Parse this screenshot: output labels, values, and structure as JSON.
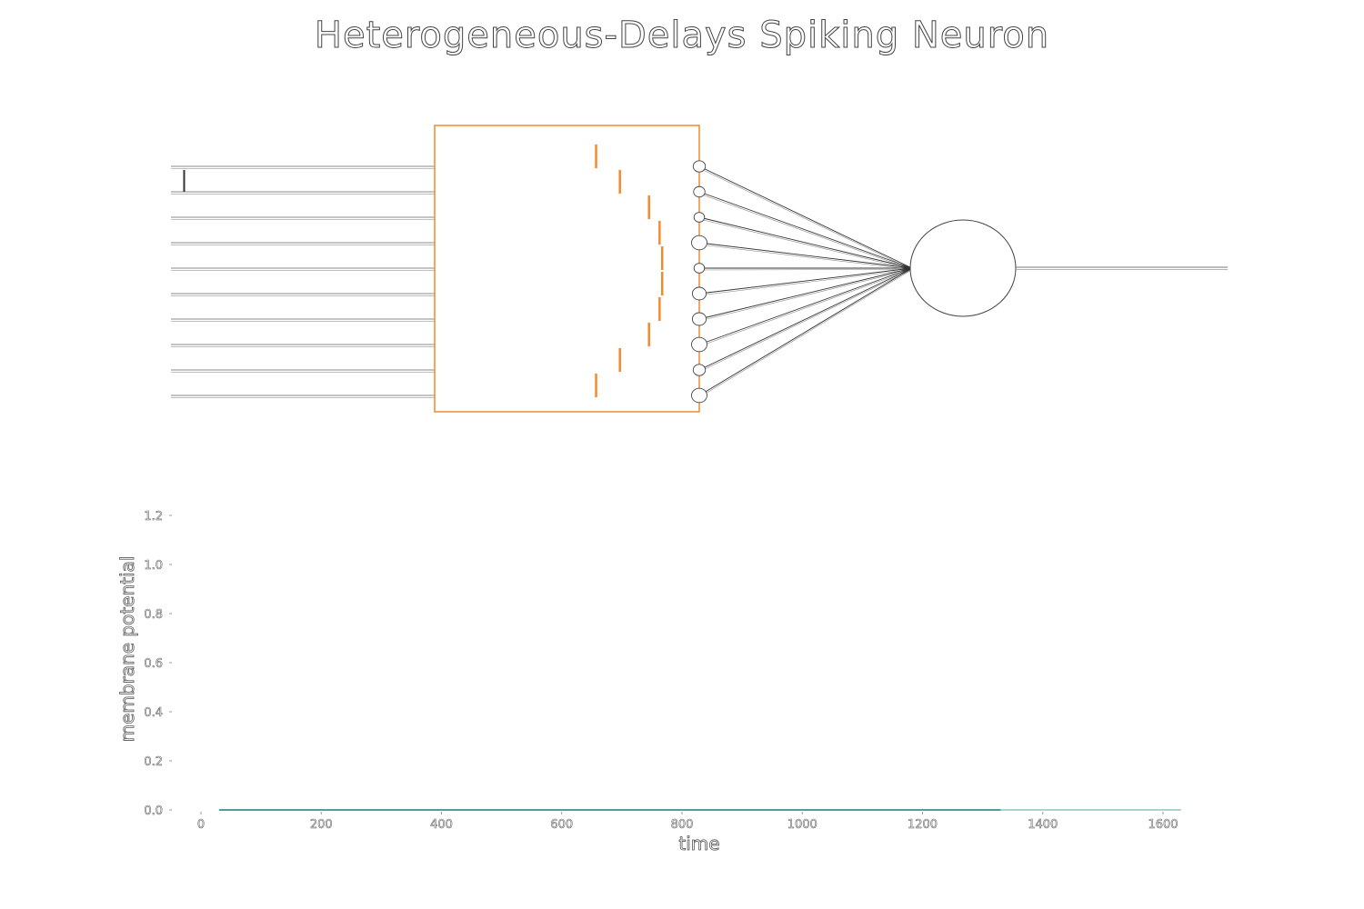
{
  "title": "Heterogeneous-Delays Spiking Neuron",
  "colors": {
    "delay_box": "#f28a2e",
    "delay_spike": "#f28a2e",
    "input_spike": "#333333",
    "wire": "#555555",
    "potential_line": "#1f7a7a"
  },
  "diagram": {
    "input_count": 10,
    "input_spikes": [
      {
        "channel": 1,
        "position": 0.05
      }
    ],
    "delay_spikes": [
      {
        "channel": 0,
        "position": 0.61
      },
      {
        "channel": 1,
        "position": 0.7
      },
      {
        "channel": 2,
        "position": 0.81
      },
      {
        "channel": 3,
        "position": 0.85
      },
      {
        "channel": 4,
        "position": 0.86
      },
      {
        "channel": 5,
        "position": 0.86
      },
      {
        "channel": 6,
        "position": 0.85
      },
      {
        "channel": 7,
        "position": 0.81
      },
      {
        "channel": 8,
        "position": 0.7
      },
      {
        "channel": 9,
        "position": 0.61
      }
    ],
    "synapse_weights": [
      0.6,
      0.5,
      0.4,
      1.0,
      0.4,
      0.8,
      0.8,
      1.0,
      0.6,
      1.0
    ]
  },
  "chart_data": {
    "type": "line",
    "xlabel": "time",
    "ylabel": "membrane potential",
    "xlim": [
      -50,
      1700
    ],
    "ylim": [
      -0.02,
      1.3
    ],
    "x_ticks": [
      0,
      200,
      400,
      600,
      800,
      1000,
      1200,
      1400,
      1600
    ],
    "y_ticks": [
      0.0,
      0.2,
      0.4,
      0.6,
      0.8,
      1.0,
      1.2
    ],
    "y_tick_labels": [
      "0.0",
      "0.2",
      "0.4",
      "0.6",
      "0.8",
      "1.0",
      "1.2"
    ],
    "series": [
      {
        "x": [
          30,
          1330
        ],
        "y": [
          0.0,
          0.0
        ]
      },
      {
        "x": [
          1330,
          1630
        ],
        "y": [
          0.0,
          0.0
        ]
      }
    ],
    "grid": false
  }
}
